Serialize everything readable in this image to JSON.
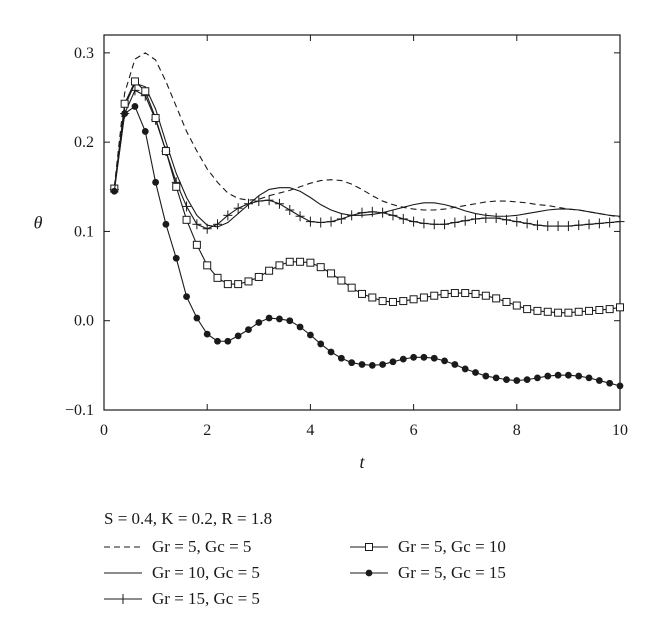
{
  "chart_data": {
    "type": "line",
    "title": "",
    "xlabel": "t",
    "ylabel": "θ",
    "xlim": [
      0,
      10
    ],
    "ylim": [
      -0.1,
      0.32
    ],
    "xticks": [
      0,
      2,
      4,
      6,
      8,
      10
    ],
    "yticks": [
      -0.1,
      0.0,
      0.1,
      0.2,
      0.3
    ],
    "xtick_labels": [
      "0",
      "2",
      "4",
      "6",
      "8",
      "10"
    ],
    "ytick_labels": [
      "−0.1",
      "0.0",
      "0.1",
      "0.2",
      "0.3"
    ],
    "grid": false,
    "annotation": "S = 0.4, K = 0.2, R = 1.8",
    "legend_position": "below",
    "series": [
      {
        "name": "Gr = 5, Gc = 5",
        "style": "dashed",
        "marker": "none",
        "x": [
          0.2,
          0.4,
          0.6,
          0.8,
          1.0,
          1.2,
          1.4,
          1.6,
          1.8,
          2.0,
          2.2,
          2.4,
          2.6,
          2.8,
          3.0,
          3.2,
          3.4,
          3.6,
          3.8,
          4.0,
          4.2,
          4.4,
          4.6,
          4.8,
          5.0,
          5.2,
          5.4,
          5.6,
          5.8,
          6.0,
          6.2,
          6.4,
          6.6,
          6.8,
          7.0,
          7.2,
          7.4,
          7.6,
          7.8,
          8.0,
          8.2,
          8.4,
          8.6,
          8.8,
          9.0,
          9.2,
          9.4,
          9.6,
          9.8,
          10.0
        ],
        "y": [
          0.15,
          0.255,
          0.293,
          0.3,
          0.292,
          0.268,
          0.24,
          0.212,
          0.19,
          0.17,
          0.155,
          0.143,
          0.137,
          0.135,
          0.136,
          0.14,
          0.143,
          0.146,
          0.15,
          0.154,
          0.157,
          0.158,
          0.157,
          0.153,
          0.147,
          0.14,
          0.134,
          0.13,
          0.127,
          0.125,
          0.124,
          0.124,
          0.125,
          0.127,
          0.129,
          0.131,
          0.133,
          0.134,
          0.134,
          0.133,
          0.132,
          0.13,
          0.129,
          0.127,
          0.125,
          0.124,
          0.122,
          0.12,
          0.118,
          0.116
        ]
      },
      {
        "name": "Gr = 10, Gc = 5",
        "style": "solid",
        "marker": "none",
        "x": [
          0.2,
          0.4,
          0.6,
          0.8,
          1.0,
          1.2,
          1.4,
          1.6,
          1.8,
          2.0,
          2.2,
          2.4,
          2.6,
          2.8,
          3.0,
          3.2,
          3.4,
          3.6,
          3.8,
          4.0,
          4.2,
          4.4,
          4.6,
          4.8,
          5.0,
          5.2,
          5.4,
          5.6,
          5.8,
          6.0,
          6.2,
          6.4,
          6.6,
          6.8,
          7.0,
          7.2,
          7.4,
          7.6,
          7.8,
          8.0,
          8.2,
          8.4,
          8.6,
          8.8,
          9.0,
          9.2,
          9.4,
          9.6,
          9.8,
          10.0
        ],
        "y": [
          0.147,
          0.24,
          0.266,
          0.262,
          0.237,
          0.2,
          0.165,
          0.138,
          0.118,
          0.107,
          0.105,
          0.11,
          0.12,
          0.13,
          0.14,
          0.147,
          0.149,
          0.149,
          0.145,
          0.138,
          0.13,
          0.124,
          0.12,
          0.118,
          0.118,
          0.119,
          0.121,
          0.124,
          0.127,
          0.13,
          0.132,
          0.132,
          0.13,
          0.127,
          0.123,
          0.12,
          0.118,
          0.117,
          0.117,
          0.118,
          0.12,
          0.122,
          0.124,
          0.125,
          0.125,
          0.124,
          0.122,
          0.12,
          0.118,
          0.117
        ]
      },
      {
        "name": "Gr = 15, Gc = 5",
        "style": "solid",
        "marker": "plus",
        "x": [
          0.2,
          0.4,
          0.6,
          0.8,
          1.0,
          1.2,
          1.4,
          1.6,
          1.8,
          2.0,
          2.2,
          2.4,
          2.6,
          2.8,
          3.0,
          3.2,
          3.4,
          3.6,
          3.8,
          4.0,
          4.2,
          4.4,
          4.6,
          4.8,
          5.0,
          5.2,
          5.4,
          5.6,
          5.8,
          6.0,
          6.2,
          6.4,
          6.6,
          6.8,
          7.0,
          7.2,
          7.4,
          7.6,
          7.8,
          8.0,
          8.2,
          8.4,
          8.6,
          8.8,
          9.0,
          9.2,
          9.4,
          9.6,
          9.8,
          10.0
        ],
        "y": [
          0.147,
          0.232,
          0.258,
          0.252,
          0.225,
          0.19,
          0.155,
          0.128,
          0.108,
          0.103,
          0.108,
          0.118,
          0.126,
          0.131,
          0.134,
          0.135,
          0.131,
          0.124,
          0.117,
          0.111,
          0.11,
          0.111,
          0.114,
          0.118,
          0.121,
          0.122,
          0.121,
          0.118,
          0.114,
          0.111,
          0.109,
          0.108,
          0.108,
          0.11,
          0.112,
          0.114,
          0.115,
          0.115,
          0.113,
          0.111,
          0.109,
          0.107,
          0.106,
          0.106,
          0.106,
          0.107,
          0.108,
          0.109,
          0.11,
          0.111
        ]
      },
      {
        "name": "Gr = 5, Gc = 10",
        "style": "solid",
        "marker": "square",
        "x": [
          0.2,
          0.4,
          0.6,
          0.8,
          1.0,
          1.2,
          1.4,
          1.6,
          1.8,
          2.0,
          2.2,
          2.4,
          2.6,
          2.8,
          3.0,
          3.2,
          3.4,
          3.6,
          3.8,
          4.0,
          4.2,
          4.4,
          4.6,
          4.8,
          5.0,
          5.2,
          5.4,
          5.6,
          5.8,
          6.0,
          6.2,
          6.4,
          6.6,
          6.8,
          7.0,
          7.2,
          7.4,
          7.6,
          7.8,
          8.0,
          8.2,
          8.4,
          8.6,
          8.8,
          9.0,
          9.2,
          9.4,
          9.6,
          9.8,
          10.0
        ],
        "y": [
          0.148,
          0.243,
          0.268,
          0.257,
          0.227,
          0.19,
          0.15,
          0.113,
          0.085,
          0.062,
          0.048,
          0.041,
          0.041,
          0.044,
          0.049,
          0.056,
          0.062,
          0.066,
          0.066,
          0.065,
          0.06,
          0.053,
          0.045,
          0.037,
          0.03,
          0.026,
          0.022,
          0.021,
          0.022,
          0.024,
          0.026,
          0.028,
          0.03,
          0.031,
          0.031,
          0.03,
          0.028,
          0.025,
          0.021,
          0.017,
          0.013,
          0.011,
          0.01,
          0.009,
          0.009,
          0.01,
          0.011,
          0.012,
          0.013,
          0.015
        ]
      },
      {
        "name": "Gr = 5, Gc = 15",
        "style": "solid",
        "marker": "circle",
        "x": [
          0.2,
          0.4,
          0.6,
          0.8,
          1.0,
          1.2,
          1.4,
          1.6,
          1.8,
          2.0,
          2.2,
          2.4,
          2.6,
          2.8,
          3.0,
          3.2,
          3.4,
          3.6,
          3.8,
          4.0,
          4.2,
          4.4,
          4.6,
          4.8,
          5.0,
          5.2,
          5.4,
          5.6,
          5.8,
          6.0,
          6.2,
          6.4,
          6.6,
          6.8,
          7.0,
          7.2,
          7.4,
          7.6,
          7.8,
          8.0,
          8.2,
          8.4,
          8.6,
          8.8,
          9.0,
          9.2,
          9.4,
          9.6,
          9.8,
          10.0
        ],
        "y": [
          0.145,
          0.232,
          0.24,
          0.212,
          0.155,
          0.108,
          0.07,
          0.027,
          0.003,
          -0.015,
          -0.023,
          -0.023,
          -0.017,
          -0.01,
          -0.002,
          0.003,
          0.002,
          0.0,
          -0.007,
          -0.016,
          -0.026,
          -0.035,
          -0.042,
          -0.047,
          -0.049,
          -0.05,
          -0.049,
          -0.046,
          -0.043,
          -0.041,
          -0.041,
          -0.042,
          -0.045,
          -0.049,
          -0.054,
          -0.058,
          -0.062,
          -0.064,
          -0.066,
          -0.067,
          -0.066,
          -0.064,
          -0.062,
          -0.061,
          -0.061,
          -0.062,
          -0.064,
          -0.067,
          -0.07,
          -0.073
        ]
      }
    ]
  }
}
